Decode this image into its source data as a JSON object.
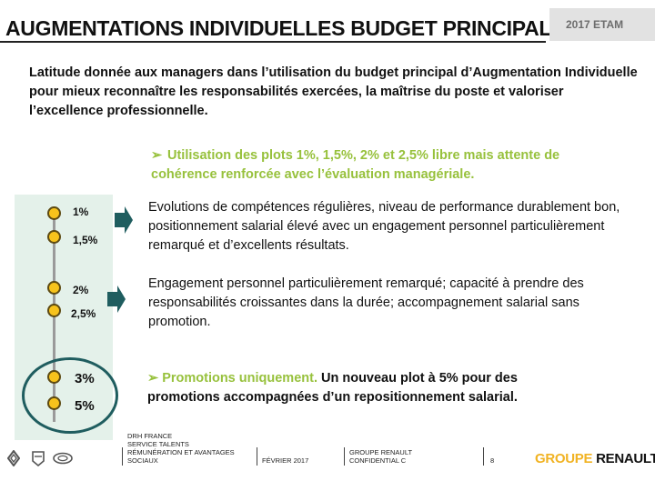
{
  "header": {
    "title": "AUGMENTATIONS INDIVIDUELLES BUDGET PRINCIPAL",
    "tag": "2017 ETAM"
  },
  "intro": "Latitude donnée aux managers dans l’utilisation du budget principal d’Augmentation Individuelle pour mieux reconnaître les responsabilités exercées, la maîtrise du poste et valoriser l’excellence professionnelle.",
  "highlight": {
    "bullet": "➢",
    "text": "Utilisation des plots 1%, 1,5%, 2% et 2,5%  libre mais attente de cohérence renforcée avec l’évaluation managériale."
  },
  "scale": {
    "labels": [
      "1%",
      "1,5%",
      "2%",
      "2,5%",
      "3%",
      "5%"
    ]
  },
  "rows": [
    "Evolutions de compétences régulières, niveau de performance durablement bon, positionnement salarial élevé avec un engagement personnel particulièrement remarqué et d’excellents résultats.",
    "Engagement personnel  particulièrement remarqué; capacité à prendre des responsabilités croissantes dans la durée; accompagnement salarial sans promotion."
  ],
  "promo": {
    "bullet": "➢",
    "lead": "Promotions uniquement.",
    "text": " Un nouveau plot à 5% pour des promotions accompagnées d’un repositionnement salarial."
  },
  "footer": {
    "dept": [
      "DRH France",
      "Service Talents",
      "Rémunération et avantages sociaux"
    ],
    "date": "Février 2017",
    "conf": [
      "Groupe Renault",
      "Confidential C"
    ],
    "page": "8",
    "brand_a": "GROUPE",
    "brand_b": "RENAULT"
  },
  "colors": {
    "accent_green": "#97c13c",
    "brand_yellow": "#f1b323",
    "ring_teal": "#1f5d5f",
    "arrow_teal": "#1f5d5f"
  }
}
